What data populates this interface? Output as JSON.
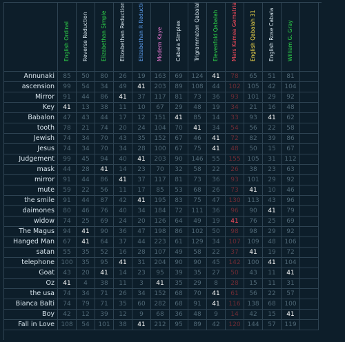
{
  "colors": {
    "background": "#0d1e2a",
    "gridline": "#2e4352",
    "dim_value": "#4f6775",
    "highlight_value": "#ffffff",
    "mars_column": "#ff4d5e"
  },
  "highlight_value": "41",
  "columns": [
    {
      "label": "English Ordinal",
      "color": "#2fd94a"
    },
    {
      "label": "Reverse Reduction",
      "color": "#d6e4ec"
    },
    {
      "label": "Elizabethan Simple",
      "color": "#2fd94a"
    },
    {
      "label": "Elizabethan Reduction",
      "color": "#d6e4ec"
    },
    {
      "label": "Elizabethan R Reduction",
      "color": "#5c9ef0"
    },
    {
      "label": "Modern Kaye",
      "color": "#f07ad8"
    },
    {
      "label": "Cabala Simplex",
      "color": "#d6e4ec"
    },
    {
      "label": "Trigrammaton Qabalah",
      "color": "#d6e4ec"
    },
    {
      "label": "Elevenfold Qabalah",
      "color": "#2fd94a"
    },
    {
      "label": "Mars Kamea Gematria",
      "color": "#ff4d5e"
    },
    {
      "label": "English Qabalah 31",
      "color": "#ffe44d"
    },
    {
      "label": "English Rose Cabala",
      "color": "#d6e4ec"
    },
    {
      "label": "William G. Gray",
      "color": "#2fd94a"
    }
  ],
  "rows": [
    {
      "label": "Annunaki",
      "values": [
        "85",
        "50",
        "80",
        "26",
        "19",
        "163",
        "69",
        "124",
        "41",
        "78",
        "65",
        "51",
        "81"
      ]
    },
    {
      "label": "ascension",
      "values": [
        "99",
        "54",
        "34",
        "49",
        "41",
        "203",
        "89",
        "108",
        "44",
        "102",
        "105",
        "42",
        "104"
      ]
    },
    {
      "label": "Mirror",
      "values": [
        "91",
        "44",
        "86",
        "41",
        "37",
        "117",
        "81",
        "73",
        "36",
        "93",
        "101",
        "29",
        "92"
      ]
    },
    {
      "label": "Key",
      "values": [
        "41",
        "13",
        "38",
        "11",
        "10",
        "67",
        "29",
        "48",
        "19",
        "34",
        "21",
        "16",
        "48"
      ]
    },
    {
      "label": "Babalon",
      "values": [
        "47",
        "43",
        "44",
        "17",
        "12",
        "151",
        "41",
        "85",
        "14",
        "33",
        "93",
        "41",
        "62"
      ]
    },
    {
      "label": "tooth",
      "values": [
        "78",
        "21",
        "74",
        "20",
        "24",
        "104",
        "70",
        "41",
        "34",
        "54",
        "56",
        "22",
        "58"
      ]
    },
    {
      "label": "Jewish",
      "values": [
        "74",
        "34",
        "70",
        "43",
        "35",
        "152",
        "67",
        "46",
        "41",
        "72",
        "82",
        "39",
        "86"
      ]
    },
    {
      "label": "Jesus",
      "values": [
        "74",
        "34",
        "70",
        "34",
        "28",
        "100",
        "67",
        "75",
        "41",
        "48",
        "50",
        "15",
        "67"
      ]
    },
    {
      "label": "Judgement",
      "values": [
        "99",
        "45",
        "94",
        "40",
        "41",
        "203",
        "90",
        "146",
        "55",
        "155",
        "105",
        "31",
        "112"
      ]
    },
    {
      "label": "mask",
      "values": [
        "44",
        "28",
        "41",
        "14",
        "23",
        "70",
        "32",
        "58",
        "22",
        "26",
        "38",
        "23",
        "63"
      ]
    },
    {
      "label": "mirror",
      "values": [
        "91",
        "44",
        "86",
        "41",
        "37",
        "117",
        "81",
        "73",
        "36",
        "93",
        "101",
        "29",
        "92"
      ]
    },
    {
      "label": "mute",
      "values": [
        "59",
        "22",
        "56",
        "11",
        "17",
        "85",
        "53",
        "68",
        "26",
        "73",
        "41",
        "10",
        "46"
      ]
    },
    {
      "label": "the smile",
      "values": [
        "91",
        "44",
        "87",
        "42",
        "41",
        "195",
        "83",
        "75",
        "47",
        "130",
        "113",
        "43",
        "96"
      ]
    },
    {
      "label": "daimones",
      "values": [
        "80",
        "46",
        "76",
        "40",
        "34",
        "184",
        "72",
        "111",
        "36",
        "96",
        "90",
        "41",
        "79"
      ]
    },
    {
      "label": "widow",
      "values": [
        "74",
        "25",
        "69",
        "24",
        "20",
        "126",
        "64",
        "49",
        "19",
        "41",
        "76",
        "25",
        "69"
      ]
    },
    {
      "label": "The Magus",
      "values": [
        "94",
        "41",
        "90",
        "36",
        "47",
        "198",
        "86",
        "102",
        "50",
        "98",
        "98",
        "29",
        "92"
      ]
    },
    {
      "label": "Hanged Man",
      "values": [
        "67",
        "41",
        "64",
        "37",
        "44",
        "223",
        "61",
        "129",
        "34",
        "107",
        "109",
        "48",
        "106"
      ]
    },
    {
      "label": "satan",
      "values": [
        "55",
        "35",
        "52",
        "16",
        "28",
        "107",
        "49",
        "58",
        "22",
        "37",
        "41",
        "19",
        "72"
      ]
    },
    {
      "label": "telephone",
      "values": [
        "100",
        "35",
        "95",
        "41",
        "31",
        "204",
        "90",
        "90",
        "45",
        "142",
        "100",
        "41",
        "104"
      ]
    },
    {
      "label": "Goat",
      "values": [
        "43",
        "20",
        "41",
        "14",
        "23",
        "95",
        "39",
        "35",
        "27",
        "50",
        "43",
        "11",
        "41"
      ]
    },
    {
      "label": "Oz",
      "values": [
        "41",
        "4",
        "38",
        "11",
        "3",
        "41",
        "35",
        "29",
        "8",
        "28",
        "15",
        "11",
        "31"
      ]
    },
    {
      "label": "the usa",
      "values": [
        "74",
        "34",
        "71",
        "26",
        "34",
        "152",
        "68",
        "70",
        "41",
        "61",
        "56",
        "22",
        "57"
      ]
    },
    {
      "label": "Bianca Balti",
      "values": [
        "74",
        "79",
        "71",
        "35",
        "60",
        "282",
        "68",
        "91",
        "41",
        "116",
        "138",
        "68",
        "100"
      ]
    },
    {
      "label": "Boy",
      "values": [
        "42",
        "12",
        "39",
        "12",
        "9",
        "68",
        "36",
        "48",
        "9",
        "14",
        "42",
        "15",
        "41"
      ]
    },
    {
      "label": "Fall in Love",
      "values": [
        "108",
        "54",
        "101",
        "38",
        "41",
        "212",
        "95",
        "89",
        "42",
        "120",
        "144",
        "57",
        "119"
      ]
    }
  ]
}
